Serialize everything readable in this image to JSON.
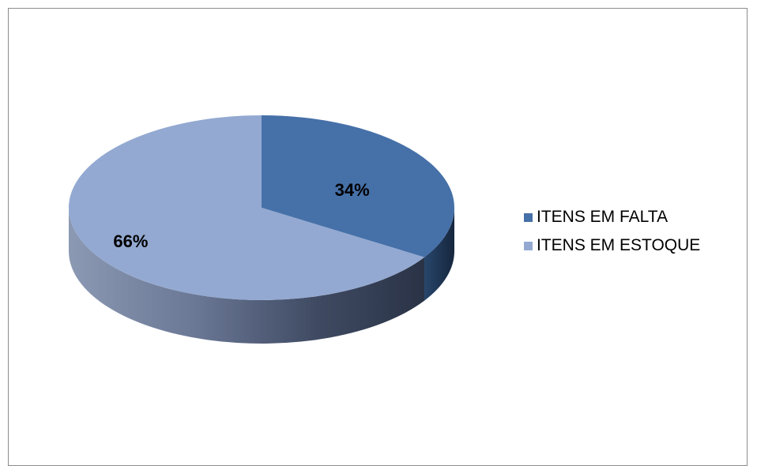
{
  "chart_data": {
    "type": "pie",
    "categories": [
      "ITENS EM FALTA",
      "ITENS EM ESTOQUE"
    ],
    "values": [
      34,
      66
    ],
    "data_labels": [
      "34%",
      "66%"
    ],
    "colors": [
      "#4670A8",
      "#93A9D1"
    ],
    "side_colors": [
      "#1F3A5C",
      "#3A4556"
    ],
    "legend": {
      "position": "right",
      "entries": [
        "ITENS EM FALTA",
        "ITENS EM ESTOQUE"
      ]
    },
    "style": "3d"
  }
}
